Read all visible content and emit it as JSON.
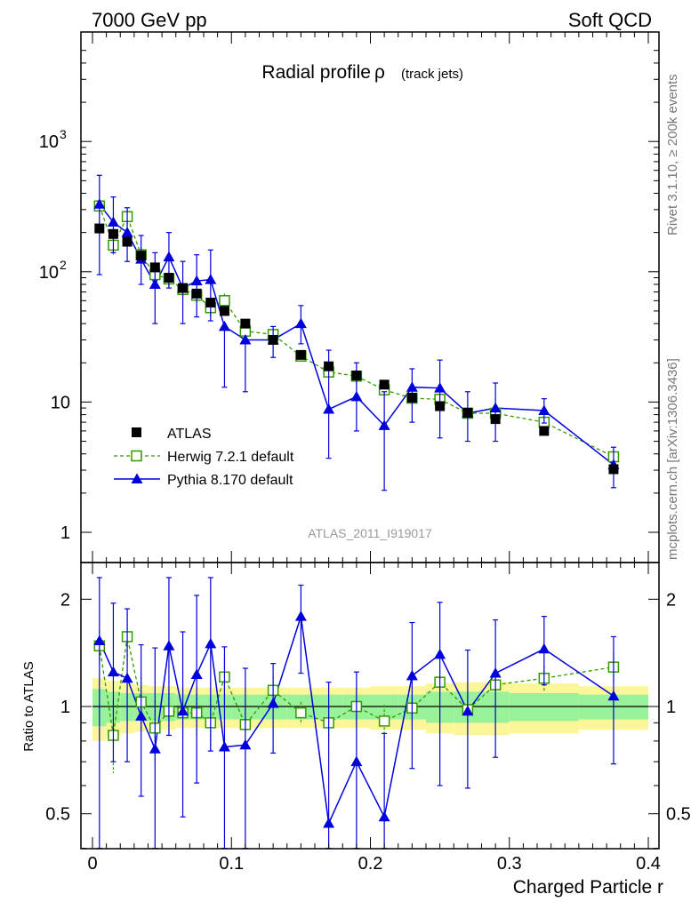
{
  "header": {
    "left": "7000 GeV pp",
    "right": "Soft QCD"
  },
  "side_labels": {
    "top": "Rivet 3.1.10, ≥ 200k events",
    "bottom": "mcplots.cern.ch [arXiv:1306.3436]"
  },
  "colors": {
    "atlas": "#000000",
    "herwig": "#339900",
    "pythia": "#0000dd",
    "band_inner": "#99f299",
    "band_outer": "#fbf799"
  },
  "chart_data": [
    {
      "type": "scatter",
      "panel": "main",
      "title": "Radial profile",
      "title_symbol": "ρ",
      "title_suffix": "(track jets)",
      "watermark": "ATLAS_2011_I919017",
      "yscale": "log",
      "xlim": [
        0,
        0.4
      ],
      "ylim": [
        0.7,
        5000
      ],
      "ytick_labels": [
        {
          "value": 1,
          "label": "1"
        },
        {
          "value": 10,
          "label": "10"
        },
        {
          "value": 100,
          "label": "10",
          "exp": "2"
        },
        {
          "value": 1000,
          "label": "10",
          "exp": "3"
        }
      ],
      "legend": {
        "position": "bottom-left",
        "entries": [
          {
            "name": "ATLAS",
            "marker": "filled-square"
          },
          {
            "name": "Herwig 7.2.1 default",
            "marker": "open-square",
            "line": "dashed"
          },
          {
            "name": "Pythia 8.170 default",
            "marker": "filled-triangle",
            "line": "solid"
          }
        ]
      },
      "series": [
        {
          "name": "ATLAS",
          "x": [
            0.005,
            0.015,
            0.025,
            0.035,
            0.045,
            0.055,
            0.065,
            0.075,
            0.085,
            0.095,
            0.11,
            0.13,
            0.15,
            0.17,
            0.19,
            0.21,
            0.23,
            0.25,
            0.27,
            0.29,
            0.325,
            0.375
          ],
          "y": [
            215,
            195,
            170,
            133,
            108,
            90,
            75,
            68,
            58,
            50,
            40,
            30,
            23,
            18.8,
            16,
            13.6,
            10.8,
            9.3,
            8.3,
            7.4,
            6.0,
            3.05
          ],
          "err": [
            14,
            12,
            11,
            9,
            8,
            6,
            5,
            5,
            4,
            4,
            3,
            2,
            1.7,
            1.4,
            1.2,
            1.0,
            0.8,
            0.7,
            0.6,
            0.55,
            0.45,
            0.25
          ]
        },
        {
          "name": "Herwig 7.2.1 default",
          "x": [
            0.005,
            0.015,
            0.025,
            0.035,
            0.045,
            0.055,
            0.065,
            0.075,
            0.085,
            0.095,
            0.11,
            0.13,
            0.15,
            0.17,
            0.19,
            0.21,
            0.23,
            0.25,
            0.27,
            0.29,
            0.325,
            0.375
          ],
          "y": [
            320,
            160,
            265,
            135,
            95,
            88,
            73,
            66,
            53,
            60,
            35,
            33,
            22.5,
            17,
            15.8,
            12.4,
            10.7,
            10.5,
            8.2,
            8.2,
            7.0,
            3.8
          ],
          "err": [
            40,
            25,
            40,
            20,
            15,
            12,
            10,
            8,
            8,
            8,
            4,
            3,
            1.5,
            1.8,
            2.0,
            1.2,
            0.8,
            0.8,
            0.7,
            0.5,
            0.6,
            0.4
          ]
        },
        {
          "name": "Pythia 8.170 default",
          "x": [
            0.005,
            0.015,
            0.025,
            0.035,
            0.045,
            0.055,
            0.065,
            0.075,
            0.085,
            0.095,
            0.11,
            0.13,
            0.15,
            0.17,
            0.19,
            0.21,
            0.23,
            0.25,
            0.27,
            0.29,
            0.325,
            0.375
          ],
          "y": [
            330,
            240,
            200,
            125,
            80,
            130,
            75,
            85,
            87,
            38,
            30,
            30,
            40,
            8.8,
            11,
            6.6,
            13,
            12.8,
            8.2,
            9.0,
            8.6,
            3.3
          ],
          "errlo": [
            235,
            100,
            80,
            45,
            40,
            55,
            35,
            40,
            45,
            25,
            18,
            8,
            12,
            5.1,
            5,
            4.5,
            6,
            7.5,
            3.2,
            4.0,
            1.7,
            1.1
          ],
          "errhi": [
            220,
            135,
            110,
            65,
            60,
            70,
            45,
            50,
            60,
            0,
            0,
            8,
            15,
            16.2,
            9,
            5.4,
            5,
            8.2,
            3.8,
            5.0,
            2.0,
            1.2
          ]
        }
      ]
    },
    {
      "type": "scatter",
      "panel": "ratio",
      "ylabel": "Ratio to ATLAS",
      "xlabel": "Charged Particle r",
      "xlim": [
        0,
        0.4
      ],
      "ylim": [
        0.4,
        2.3
      ],
      "ytick_labels": [
        {
          "value": 0.5,
          "label": "0.5"
        },
        {
          "value": 1,
          "label": "1"
        },
        {
          "value": 2,
          "label": "2"
        }
      ],
      "xtick_labels": [
        {
          "value": 0,
          "label": "0"
        },
        {
          "value": 0.1,
          "label": "0.1"
        },
        {
          "value": 0.2,
          "label": "0.2"
        },
        {
          "value": 0.3,
          "label": "0.3"
        },
        {
          "value": 0.4,
          "label": "0.4"
        }
      ],
      "band": {
        "x_edges": [
          0.0,
          0.01,
          0.02,
          0.03,
          0.04,
          0.05,
          0.06,
          0.07,
          0.08,
          0.09,
          0.1,
          0.12,
          0.14,
          0.16,
          0.18,
          0.2,
          0.22,
          0.24,
          0.26,
          0.28,
          0.3,
          0.35,
          0.4
        ],
        "inner": [
          0.12,
          0.1,
          0.09,
          0.09,
          0.09,
          0.09,
          0.08,
          0.08,
          0.08,
          0.08,
          0.08,
          0.08,
          0.08,
          0.08,
          0.08,
          0.08,
          0.08,
          0.1,
          0.1,
          0.1,
          0.09,
          0.08
        ],
        "outer": [
          0.2,
          0.18,
          0.16,
          0.15,
          0.14,
          0.14,
          0.13,
          0.13,
          0.13,
          0.13,
          0.13,
          0.13,
          0.13,
          0.13,
          0.13,
          0.14,
          0.14,
          0.16,
          0.17,
          0.17,
          0.16,
          0.14
        ]
      },
      "series": [
        {
          "name": "Herwig 7.2.1 default",
          "x": [
            0.005,
            0.015,
            0.025,
            0.035,
            0.045,
            0.055,
            0.065,
            0.075,
            0.085,
            0.095,
            0.11,
            0.13,
            0.15,
            0.17,
            0.19,
            0.21,
            0.23,
            0.25,
            0.27,
            0.29,
            0.325,
            0.375
          ],
          "y": [
            1.48,
            0.83,
            1.57,
            1.03,
            0.87,
            0.97,
            0.96,
            0.96,
            0.9,
            1.21,
            0.89,
            1.11,
            0.96,
            0.9,
            1.0,
            0.91,
            0.99,
            1.17,
            0.98,
            1.15,
            1.2,
            1.29
          ],
          "err": [
            0.15,
            0.18,
            0.25,
            0.18,
            0.17,
            0.15,
            0.14,
            0.13,
            0.15,
            0.16,
            0.1,
            0.1,
            0.07,
            0.1,
            0.13,
            0.1,
            0.08,
            0.09,
            0.09,
            0.07,
            0.1,
            0.13
          ]
        },
        {
          "name": "Pythia 8.170 default",
          "x": [
            0.005,
            0.015,
            0.025,
            0.035,
            0.045,
            0.055,
            0.065,
            0.075,
            0.085,
            0.095,
            0.11,
            0.13,
            0.15,
            0.17,
            0.19,
            0.21,
            0.23,
            0.25,
            0.27,
            0.29,
            0.325,
            0.375
          ],
          "y": [
            1.53,
            1.25,
            1.2,
            0.94,
            0.76,
            1.48,
            0.97,
            1.23,
            1.5,
            0.77,
            0.78,
            1.02,
            1.79,
            0.47,
            0.7,
            0.49,
            1.22,
            1.4,
            0.97,
            1.24,
            1.45,
            1.07
          ],
          "errlo": [
            1.13,
            0.55,
            0.5,
            0.38,
            0.45,
            0.65,
            0.48,
            0.62,
            0.75,
            0.7,
            0.5,
            0.28,
            0.55,
            0.4,
            0.4,
            0.45,
            0.55,
            0.8,
            0.38,
            0.52,
            0.3,
            0.38
          ],
          "errhi": [
            1.0,
            0.7,
            0.68,
            0.55,
            0.7,
            0.85,
            0.65,
            0.82,
            1.0,
            0.7,
            0.5,
            0.3,
            0.4,
            0.7,
            0.55,
            0.35,
            0.5,
            0.56,
            0.47,
            0.51,
            0.34,
            0.5
          ]
        }
      ]
    }
  ]
}
